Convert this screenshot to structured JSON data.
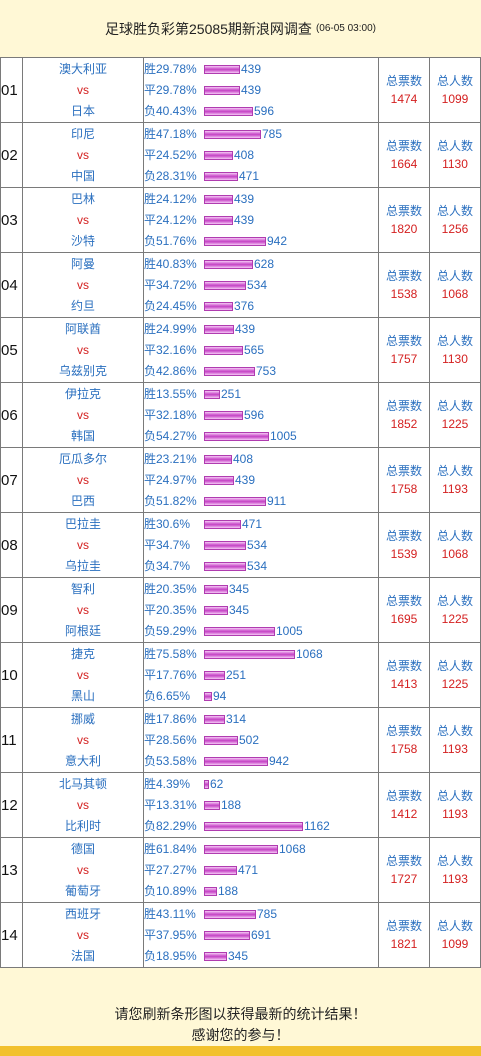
{
  "header": {
    "title": "足球胜负彩第25085期新浪网调查",
    "date": "(06-05 03:00)"
  },
  "labels": {
    "win": "胜",
    "draw": "平",
    "lose": "负",
    "vs": "vs",
    "total_votes": "总票数",
    "total_people": "总人数"
  },
  "matches": [
    {
      "no": "01",
      "home": "澳大利亚",
      "away": "日本",
      "win": {
        "pct": "29.78%",
        "count": 439
      },
      "draw": {
        "pct": "29.78%",
        "count": 439
      },
      "lose": {
        "pct": "40.43%",
        "count": 596
      },
      "total_votes": "1474",
      "total_people": "1099"
    },
    {
      "no": "02",
      "home": "印尼",
      "away": "中国",
      "win": {
        "pct": "47.18%",
        "count": 785
      },
      "draw": {
        "pct": "24.52%",
        "count": 408
      },
      "lose": {
        "pct": "28.31%",
        "count": 471
      },
      "total_votes": "1664",
      "total_people": "1130"
    },
    {
      "no": "03",
      "home": "巴林",
      "away": "沙特",
      "win": {
        "pct": "24.12%",
        "count": 439
      },
      "draw": {
        "pct": "24.12%",
        "count": 439
      },
      "lose": {
        "pct": "51.76%",
        "count": 942
      },
      "total_votes": "1820",
      "total_people": "1256"
    },
    {
      "no": "04",
      "home": "阿曼",
      "away": "约旦",
      "win": {
        "pct": "40.83%",
        "count": 628
      },
      "draw": {
        "pct": "34.72%",
        "count": 534
      },
      "lose": {
        "pct": "24.45%",
        "count": 376
      },
      "total_votes": "1538",
      "total_people": "1068"
    },
    {
      "no": "05",
      "home": "阿联酋",
      "away": "乌兹别克",
      "win": {
        "pct": "24.99%",
        "count": 439
      },
      "draw": {
        "pct": "32.16%",
        "count": 565
      },
      "lose": {
        "pct": "42.86%",
        "count": 753
      },
      "total_votes": "1757",
      "total_people": "1130"
    },
    {
      "no": "06",
      "home": "伊拉克",
      "away": "韩国",
      "win": {
        "pct": "13.55%",
        "count": 251
      },
      "draw": {
        "pct": "32.18%",
        "count": 596
      },
      "lose": {
        "pct": "54.27%",
        "count": 1005
      },
      "total_votes": "1852",
      "total_people": "1225"
    },
    {
      "no": "07",
      "home": "厄瓜多尔",
      "away": "巴西",
      "win": {
        "pct": "23.21%",
        "count": 408
      },
      "draw": {
        "pct": "24.97%",
        "count": 439
      },
      "lose": {
        "pct": "51.82%",
        "count": 911
      },
      "total_votes": "1758",
      "total_people": "1193"
    },
    {
      "no": "08",
      "home": "巴拉圭",
      "away": "乌拉圭",
      "win": {
        "pct": "30.6%",
        "count": 471
      },
      "draw": {
        "pct": "34.7%",
        "count": 534
      },
      "lose": {
        "pct": "34.7%",
        "count": 534
      },
      "total_votes": "1539",
      "total_people": "1068"
    },
    {
      "no": "09",
      "home": "智利",
      "away": "阿根廷",
      "win": {
        "pct": "20.35%",
        "count": 345
      },
      "draw": {
        "pct": "20.35%",
        "count": 345
      },
      "lose": {
        "pct": "59.29%",
        "count": 1005
      },
      "total_votes": "1695",
      "total_people": "1225"
    },
    {
      "no": "10",
      "home": "捷克",
      "away": "黑山",
      "win": {
        "pct": "75.58%",
        "count": 1068
      },
      "draw": {
        "pct": "17.76%",
        "count": 251
      },
      "lose": {
        "pct": "6.65%",
        "count": 94
      },
      "total_votes": "1413",
      "total_people": "1225"
    },
    {
      "no": "11",
      "home": "挪威",
      "away": "意大利",
      "win": {
        "pct": "17.86%",
        "count": 314
      },
      "draw": {
        "pct": "28.56%",
        "count": 502
      },
      "lose": {
        "pct": "53.58%",
        "count": 942
      },
      "total_votes": "1758",
      "total_people": "1193"
    },
    {
      "no": "12",
      "home": "北马其顿",
      "away": "比利时",
      "win": {
        "pct": "4.39%",
        "count": 62
      },
      "draw": {
        "pct": "13.31%",
        "count": 188
      },
      "lose": {
        "pct": "82.29%",
        "count": 1162
      },
      "total_votes": "1412",
      "total_people": "1193"
    },
    {
      "no": "13",
      "home": "德国",
      "away": "葡萄牙",
      "win": {
        "pct": "61.84%",
        "count": 1068
      },
      "draw": {
        "pct": "27.27%",
        "count": 471
      },
      "lose": {
        "pct": "10.89%",
        "count": 188
      },
      "total_votes": "1727",
      "total_people": "1193"
    },
    {
      "no": "14",
      "home": "西班牙",
      "away": "法国",
      "win": {
        "pct": "43.11%",
        "count": 785
      },
      "draw": {
        "pct": "37.95%",
        "count": 691
      },
      "lose": {
        "pct": "18.95%",
        "count": 345
      },
      "total_votes": "1821",
      "total_people": "1099"
    }
  ],
  "footer": {
    "line1": "请您刷新条形图以获得最新的统计结果！",
    "line2": "感谢您的参与！"
  },
  "colors": {
    "background": "#FFF8D6",
    "text_blue": "#2A6FBF",
    "text_red": "#D42020",
    "bar": "#C84BC8",
    "footer_strip": "#F2C12E"
  }
}
